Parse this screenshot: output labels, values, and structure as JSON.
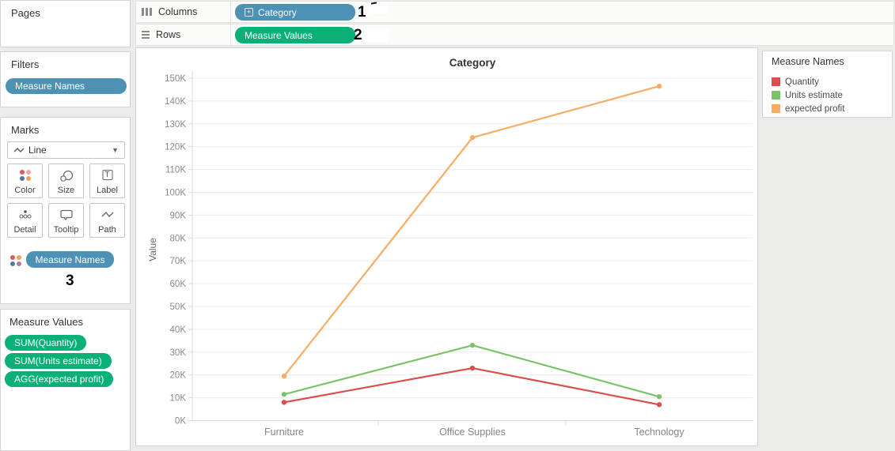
{
  "colors": {
    "dimension_pill": "#4d92b5",
    "measure_pill": "#0bb077",
    "quantity_red": "#d7504d",
    "units_green": "#79c36a",
    "profit_orange": "#f9ac66"
  },
  "icons": {
    "columns": "columns-bars-icon",
    "rows": "rows-bars-icon",
    "expand": "expand-plus-icon",
    "mark_type": "line-wave-icon",
    "dropdown": "chevron-down-icon",
    "color_button": "color-dots-icon",
    "size_button": "size-circles-icon",
    "label_button": "label-t-icon",
    "detail_button": "detail-dots-icon",
    "tooltip_button": "tooltip-bubble-icon",
    "path_button": "path-wave-icon",
    "marks_pill": "color-dots-icon"
  },
  "shelves": {
    "columns_label": "Columns",
    "rows_label": "Rows",
    "columns_pill": "Category",
    "rows_pill": "Measure Values"
  },
  "annotations": {
    "one": "1",
    "two": "2",
    "three": "3"
  },
  "cards": {
    "pages": {
      "title": "Pages"
    },
    "filters": {
      "title": "Filters",
      "pills": [
        "Measure Names"
      ]
    },
    "marks": {
      "title": "Marks",
      "mark_type": "Line",
      "buttons": [
        "Color",
        "Size",
        "Label",
        "Detail",
        "Tooltip",
        "Path"
      ],
      "pill": "Measure Names"
    },
    "measure_values": {
      "title": "Measure Values",
      "pills": [
        "SUM(Quantity)",
        "SUM(Units estimate)",
        "AGG(expected profit)"
      ]
    }
  },
  "legend": {
    "title": "Measure Names",
    "items": [
      {
        "label": "Quantity",
        "color": "#d7504d"
      },
      {
        "label": "Units estimate",
        "color": "#79c36a"
      },
      {
        "label": "expected profit",
        "color": "#f9ac66"
      }
    ]
  },
  "chart_data": {
    "type": "line",
    "title": "Category",
    "xlabel": "",
    "ylabel": "Value",
    "categories": [
      "Furniture",
      "Office Supplies",
      "Technology"
    ],
    "series": [
      {
        "name": "Quantity",
        "color": "#d7504d",
        "values": [
          8000,
          23000,
          7000
        ]
      },
      {
        "name": "Units estimate",
        "color": "#79c36a",
        "values": [
          11500,
          33000,
          10500
        ]
      },
      {
        "name": "expected profit",
        "color": "#f9ac66",
        "values": [
          19500,
          124000,
          146500
        ]
      }
    ],
    "ylim": [
      0,
      150000
    ],
    "ytick_step": 10000,
    "ytick_format": "K",
    "grid": true,
    "legend_position": "right"
  }
}
